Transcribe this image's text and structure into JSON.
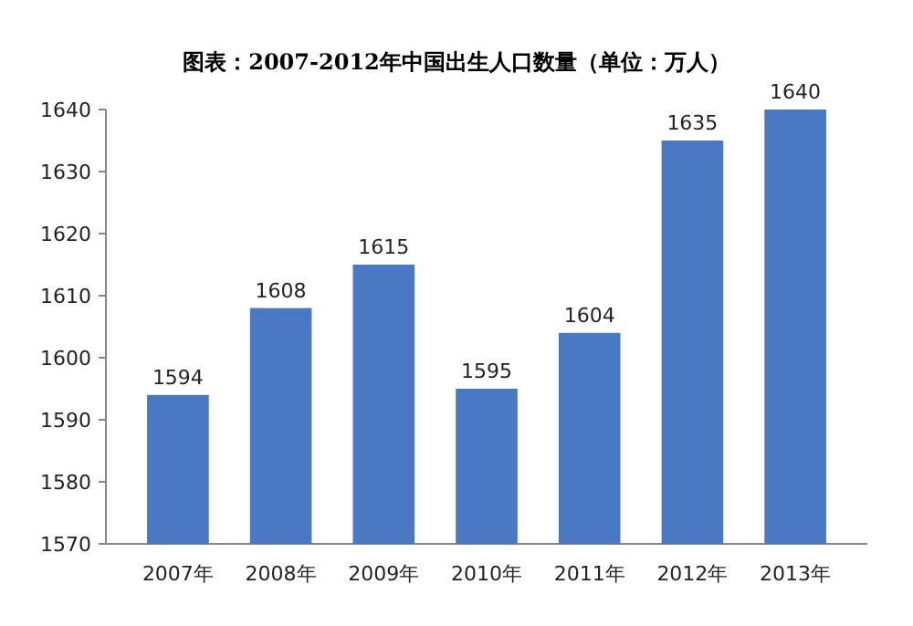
{
  "chart_data": {
    "type": "bar",
    "title": "图表：2007-2012年中国出生人口数量（单位：万人）",
    "categories": [
      "2007年",
      "2008年",
      "2009年",
      "2010年",
      "2011年",
      "2012年",
      "2013年"
    ],
    "values": [
      1594,
      1608,
      1615,
      1595,
      1604,
      1635,
      1640
    ],
    "color": "#4a78c2",
    "ylim": [
      1570,
      1640
    ],
    "yticks": [
      1570,
      1580,
      1590,
      1600,
      1610,
      1620,
      1630,
      1640
    ],
    "data_labels": true
  }
}
